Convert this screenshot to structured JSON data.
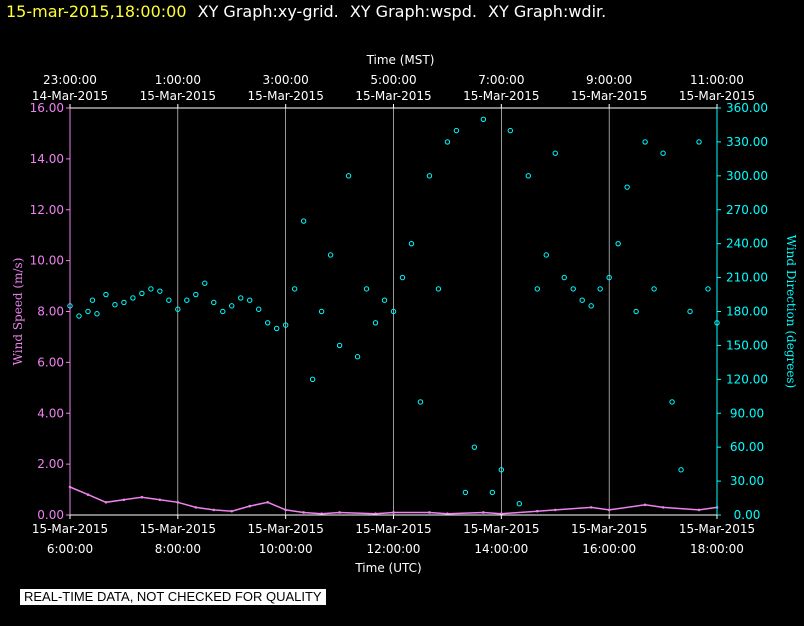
{
  "header": {
    "timestamp": "15-mar-2015,18:00:00",
    "graph_titles": [
      "XY Graph:xy-grid.",
      "XY Graph:wspd.",
      "XY Graph:wdir."
    ]
  },
  "footer": {
    "banner": "REAL-TIME DATA, NOT CHECKED FOR QUALITY"
  },
  "colors": {
    "wspd": "#ee82ee",
    "wdir": "#00ffff",
    "axis": "#ffffff",
    "grid": "#ffffff",
    "background": "#000000"
  },
  "chart_data": {
    "type": "scatter",
    "top_axis_title": "Time (MST)",
    "bottom_axis_title": "Time (UTC)",
    "ylabel_left": "Wind Speed (m/s)",
    "ylabel_right": "Wind Direction (degrees)",
    "x_start_utc": "15-Mar-2015 6:00:00",
    "x_end_utc": "15-Mar-2015 18:00:00",
    "ylim_left": [
      0,
      16
    ],
    "ylim_right": [
      0,
      360
    ],
    "left_ticks": [
      "0.00",
      "2.00",
      "4.00",
      "6.00",
      "8.00",
      "10.00",
      "12.00",
      "14.00",
      "16.00"
    ],
    "right_ticks": [
      "0.00",
      "30.00",
      "60.00",
      "90.00",
      "120.00",
      "150.00",
      "180.00",
      "210.00",
      "240.00",
      "270.00",
      "300.00",
      "330.00",
      "360.00"
    ],
    "bottom_ticks": [
      {
        "date": "15-Mar-2015",
        "time": "6:00:00"
      },
      {
        "date": "15-Mar-2015",
        "time": "8:00:00"
      },
      {
        "date": "15-Mar-2015",
        "time": "10:00:00"
      },
      {
        "date": "15-Mar-2015",
        "time": "12:00:00"
      },
      {
        "date": "15-Mar-2015",
        "time": "14:00:00"
      },
      {
        "date": "15-Mar-2015",
        "time": "16:00:00"
      },
      {
        "date": "15-Mar-2015",
        "time": "18:00:00"
      }
    ],
    "top_ticks": [
      {
        "time": "23:00:00",
        "date": "14-Mar-2015"
      },
      {
        "time": "1:00:00",
        "date": "15-Mar-2015"
      },
      {
        "time": "3:00:00",
        "date": "15-Mar-2015"
      },
      {
        "time": "5:00:00",
        "date": "15-Mar-2015"
      },
      {
        "time": "7:00:00",
        "date": "15-Mar-2015"
      },
      {
        "time": "9:00:00",
        "date": "15-Mar-2015"
      },
      {
        "time": "11:00:00",
        "date": "15-Mar-2015"
      }
    ],
    "grid": true,
    "series": [
      {
        "key": "wspd",
        "axis": "left",
        "style": "line",
        "points": [
          [
            "06:00",
            1.1
          ],
          [
            "06:20",
            0.8
          ],
          [
            "06:40",
            0.5
          ],
          [
            "07:00",
            0.6
          ],
          [
            "07:20",
            0.7
          ],
          [
            "07:40",
            0.6
          ],
          [
            "08:00",
            0.5
          ],
          [
            "08:20",
            0.3
          ],
          [
            "08:40",
            0.2
          ],
          [
            "09:00",
            0.15
          ],
          [
            "09:20",
            0.35
          ],
          [
            "09:40",
            0.5
          ],
          [
            "10:00",
            0.2
          ],
          [
            "10:20",
            0.1
          ],
          [
            "10:40",
            0.05
          ],
          [
            "11:00",
            0.1
          ],
          [
            "11:40",
            0.05
          ],
          [
            "12:00",
            0.1
          ],
          [
            "12:40",
            0.1
          ],
          [
            "13:00",
            0.05
          ],
          [
            "13:40",
            0.1
          ],
          [
            "14:00",
            0.05
          ],
          [
            "14:40",
            0.15
          ],
          [
            "15:00",
            0.2
          ],
          [
            "15:40",
            0.3
          ],
          [
            "16:00",
            0.2
          ],
          [
            "16:40",
            0.4
          ],
          [
            "17:00",
            0.3
          ],
          [
            "17:40",
            0.2
          ],
          [
            "18:00",
            0.3
          ]
        ]
      },
      {
        "key": "wdir",
        "axis": "right",
        "style": "markers",
        "points": [
          [
            "06:00",
            185
          ],
          [
            "06:10",
            176
          ],
          [
            "06:20",
            180
          ],
          [
            "06:25",
            190
          ],
          [
            "06:30",
            178
          ],
          [
            "06:40",
            195
          ],
          [
            "06:50",
            186
          ],
          [
            "07:00",
            188
          ],
          [
            "07:10",
            192
          ],
          [
            "07:20",
            196
          ],
          [
            "07:30",
            200
          ],
          [
            "07:40",
            198
          ],
          [
            "07:50",
            190
          ],
          [
            "08:00",
            182
          ],
          [
            "08:10",
            190
          ],
          [
            "08:20",
            195
          ],
          [
            "08:30",
            205
          ],
          [
            "08:40",
            188
          ],
          [
            "08:50",
            180
          ],
          [
            "09:00",
            185
          ],
          [
            "09:10",
            192
          ],
          [
            "09:20",
            190
          ],
          [
            "09:30",
            182
          ],
          [
            "09:40",
            170
          ],
          [
            "09:50",
            165
          ],
          [
            "10:00",
            168
          ],
          [
            "10:10",
            200
          ],
          [
            "10:20",
            260
          ],
          [
            "10:30",
            120
          ],
          [
            "10:40",
            180
          ],
          [
            "10:50",
            230
          ],
          [
            "11:00",
            150
          ],
          [
            "11:10",
            300
          ],
          [
            "11:20",
            140
          ],
          [
            "11:30",
            200
          ],
          [
            "11:40",
            170
          ],
          [
            "11:50",
            190
          ],
          [
            "12:00",
            180
          ],
          [
            "12:10",
            210
          ],
          [
            "12:20",
            240
          ],
          [
            "12:30",
            100
          ],
          [
            "12:40",
            300
          ],
          [
            "12:50",
            200
          ],
          [
            "13:00",
            330
          ],
          [
            "13:10",
            340
          ],
          [
            "13:20",
            20
          ],
          [
            "13:30",
            60
          ],
          [
            "13:40",
            350
          ],
          [
            "13:50",
            20
          ],
          [
            "14:00",
            40
          ],
          [
            "14:10",
            340
          ],
          [
            "14:20",
            10
          ],
          [
            "14:30",
            300
          ],
          [
            "14:40",
            200
          ],
          [
            "14:50",
            230
          ],
          [
            "15:00",
            320
          ],
          [
            "15:10",
            210
          ],
          [
            "15:20",
            200
          ],
          [
            "15:30",
            190
          ],
          [
            "15:40",
            185
          ],
          [
            "15:50",
            200
          ],
          [
            "16:00",
            210
          ],
          [
            "16:10",
            240
          ],
          [
            "16:20",
            290
          ],
          [
            "16:30",
            180
          ],
          [
            "16:40",
            330
          ],
          [
            "16:50",
            200
          ],
          [
            "17:00",
            320
          ],
          [
            "17:10",
            100
          ],
          [
            "17:20",
            40
          ],
          [
            "17:30",
            180
          ],
          [
            "17:40",
            330
          ],
          [
            "17:50",
            200
          ],
          [
            "18:00",
            170
          ]
        ]
      }
    ]
  }
}
